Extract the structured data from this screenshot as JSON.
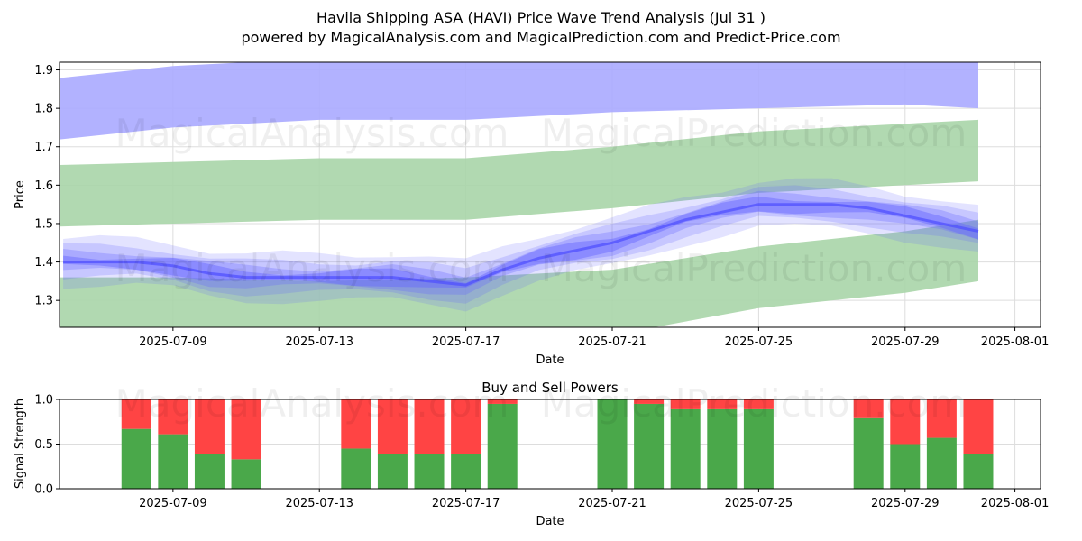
{
  "title_line1": "Havila Shipping ASA (HAVI) Price Wave Trend Analysis (Jul 31 )",
  "title_line2": "powered by MagicalAnalysis.com and MagicalPrediction.com and Predict-Price.com",
  "watermark_left": "MagicalAnalysis.com",
  "watermark_right": "MagicalPrediction.com",
  "colors": {
    "upper_band": "#aaaaff",
    "green_band": "#a8d5a8",
    "price_wave": "#6666ff",
    "buy": "#4aa84a",
    "sell": "#ff4444"
  },
  "chart_data": [
    {
      "type": "area",
      "xlabel": "Date",
      "ylabel": "Price",
      "ylim": [
        1.23,
        1.92
      ],
      "xlim": [
        "2025-07-05",
        "2025-08-01"
      ],
      "yticks": [
        1.3,
        1.4,
        1.5,
        1.6,
        1.7,
        1.8,
        1.9
      ],
      "xticks": [
        "2025-07-09",
        "2025-07-13",
        "2025-07-17",
        "2025-07-21",
        "2025-07-25",
        "2025-07-29",
        "2025-08-01"
      ],
      "grid": true,
      "series": [
        {
          "x": [
            "2025-07-05",
            "2025-07-09",
            "2025-07-13",
            "2025-07-17",
            "2025-07-21",
            "2025-07-25",
            "2025-07-29",
            "2025-07-31"
          ],
          "upper": [
            1.87,
            1.91,
            1.93,
            1.93,
            1.94,
            1.94,
            1.93,
            1.92
          ],
          "lower": [
            1.71,
            1.75,
            1.77,
            1.77,
            1.79,
            1.8,
            1.81,
            1.8
          ]
        },
        {
          "x": [
            "2025-07-05",
            "2025-07-09",
            "2025-07-13",
            "2025-07-17",
            "2025-07-21",
            "2025-07-25",
            "2025-07-29",
            "2025-07-31"
          ],
          "upper": [
            1.65,
            1.66,
            1.67,
            1.67,
            1.7,
            1.74,
            1.76,
            1.77
          ],
          "lower": [
            1.49,
            1.5,
            1.51,
            1.51,
            1.54,
            1.58,
            1.6,
            1.61
          ]
        },
        {
          "x": [
            "2025-07-05",
            "2025-07-09",
            "2025-07-13",
            "2025-07-17",
            "2025-07-21",
            "2025-07-25",
            "2025-07-29",
            "2025-07-31"
          ],
          "upper": [
            1.36,
            1.36,
            1.35,
            1.36,
            1.38,
            1.44,
            1.48,
            1.51
          ],
          "lower": [
            1.2,
            1.2,
            1.2,
            1.2,
            1.21,
            1.28,
            1.32,
            1.35
          ]
        }
      ],
      "price_wave": {
        "x": [
          "2025-07-06",
          "2025-07-07",
          "2025-07-08",
          "2025-07-09",
          "2025-07-10",
          "2025-07-11",
          "2025-07-12",
          "2025-07-13",
          "2025-07-14",
          "2025-07-15",
          "2025-07-16",
          "2025-07-17",
          "2025-07-18",
          "2025-07-19",
          "2025-07-20",
          "2025-07-21",
          "2025-07-22",
          "2025-07-23",
          "2025-07-24",
          "2025-07-25",
          "2025-07-26",
          "2025-07-27",
          "2025-07-28",
          "2025-07-29",
          "2025-07-30",
          "2025-07-31"
        ],
        "y": [
          1.4,
          1.4,
          1.4,
          1.39,
          1.37,
          1.36,
          1.36,
          1.36,
          1.36,
          1.36,
          1.35,
          1.34,
          1.38,
          1.41,
          1.43,
          1.45,
          1.48,
          1.51,
          1.53,
          1.55,
          1.55,
          1.55,
          1.54,
          1.52,
          1.5,
          1.48
        ]
      }
    },
    {
      "type": "bar",
      "title": "Buy and Sell Powers",
      "xlabel": "Date",
      "ylabel": "Signal Strength",
      "ylim": [
        0.0,
        1.0
      ],
      "yticks": [
        "0.0",
        "0.5",
        "1.0"
      ],
      "xticks": [
        "2025-07-09",
        "2025-07-13",
        "2025-07-17",
        "2025-07-21",
        "2025-07-25",
        "2025-07-29",
        "2025-08-01"
      ],
      "grid": true,
      "categories": [
        "2025-07-08",
        "2025-07-09",
        "2025-07-10",
        "2025-07-11",
        "2025-07-14",
        "2025-07-15",
        "2025-07-16",
        "2025-07-17",
        "2025-07-18",
        "2025-07-21",
        "2025-07-22",
        "2025-07-23",
        "2025-07-24",
        "2025-07-25",
        "2025-07-28",
        "2025-07-29",
        "2025-07-30",
        "2025-07-31"
      ],
      "buy": [
        0.67,
        0.61,
        0.39,
        0.33,
        0.45,
        0.39,
        0.39,
        0.39,
        0.95,
        1.0,
        0.95,
        0.89,
        0.89,
        0.89,
        0.79,
        0.5,
        0.57,
        0.39
      ],
      "sell": [
        0.33,
        0.39,
        0.61,
        0.67,
        0.55,
        0.61,
        0.61,
        0.61,
        0.05,
        0.0,
        0.05,
        0.11,
        0.11,
        0.11,
        0.21,
        0.5,
        0.43,
        0.61
      ]
    }
  ]
}
